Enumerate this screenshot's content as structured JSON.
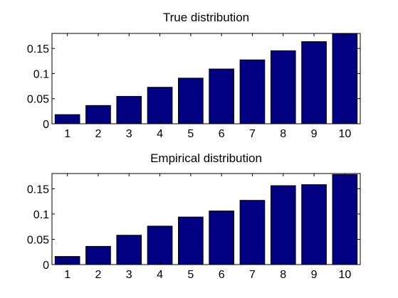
{
  "chart_data": [
    {
      "type": "bar",
      "title": "True distribution",
      "xlabel": "",
      "ylabel": "",
      "categories": [
        "1",
        "2",
        "3",
        "4",
        "5",
        "6",
        "7",
        "8",
        "9",
        "10"
      ],
      "values": [
        0.0182,
        0.0364,
        0.0545,
        0.0727,
        0.0909,
        0.1091,
        0.1273,
        0.1455,
        0.1636,
        0.1818
      ],
      "ylim": [
        0,
        0.18
      ],
      "yticks": [
        0,
        0.05,
        0.1,
        0.15
      ],
      "ytick_labels": [
        "0",
        "0.05",
        "0.1",
        "0.15"
      ],
      "bar_color": "#000080",
      "grid": false,
      "legend": "none"
    },
    {
      "type": "bar",
      "title": "Empirical distribution",
      "xlabel": "",
      "ylabel": "",
      "categories": [
        "1",
        "2",
        "3",
        "4",
        "5",
        "6",
        "7",
        "8",
        "9",
        "10"
      ],
      "values": [
        0.016,
        0.036,
        0.058,
        0.076,
        0.094,
        0.106,
        0.127,
        0.156,
        0.158,
        0.178
      ],
      "ylim": [
        0,
        0.18
      ],
      "yticks": [
        0,
        0.05,
        0.1,
        0.15
      ],
      "ytick_labels": [
        "0",
        "0.05",
        "0.1",
        "0.15"
      ],
      "bar_color": "#000080",
      "grid": false,
      "legend": "none"
    }
  ]
}
